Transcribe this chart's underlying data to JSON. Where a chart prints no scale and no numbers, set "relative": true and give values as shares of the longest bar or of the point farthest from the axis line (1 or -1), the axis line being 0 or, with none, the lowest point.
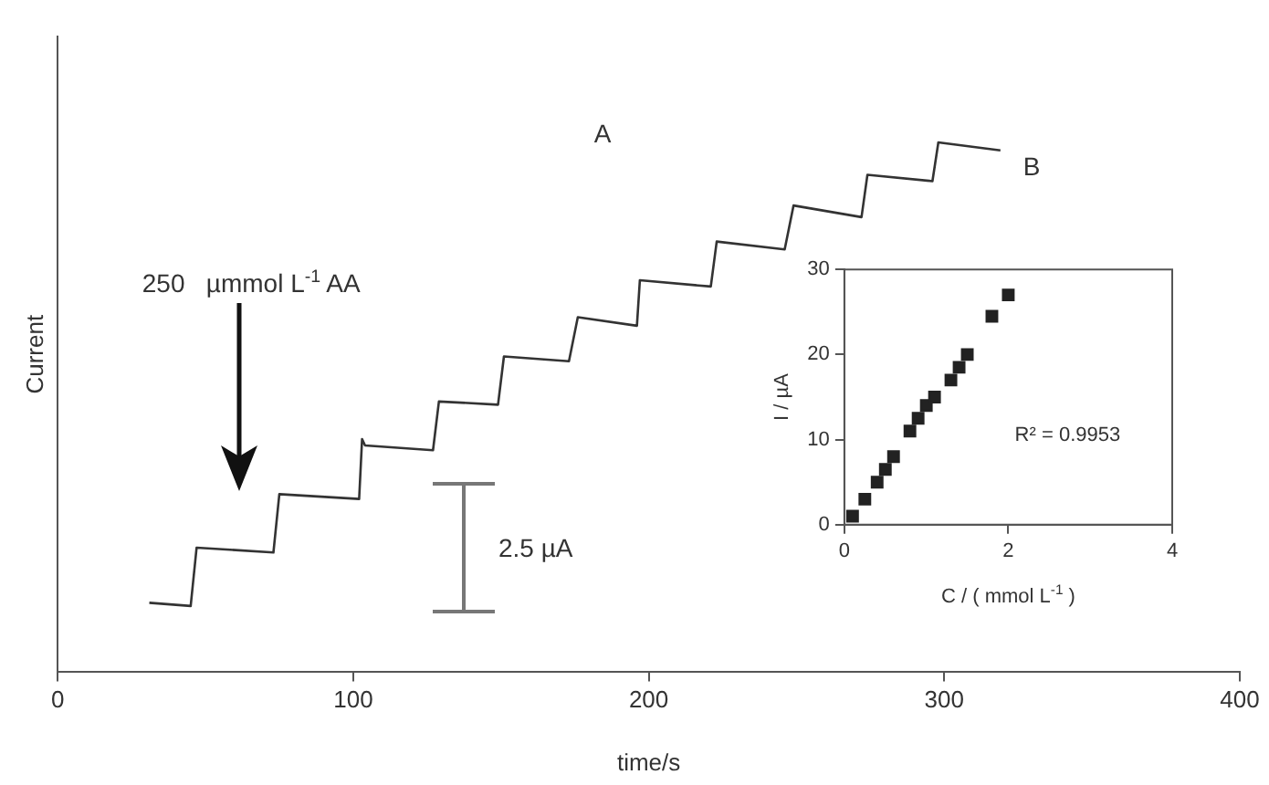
{
  "chart_data": [
    {
      "type": "line",
      "relative": true,
      "xlabel": "time/s",
      "ylabel": "Current",
      "xlim": [
        0,
        400
      ],
      "xticks": [
        0,
        100,
        200,
        300,
        400
      ],
      "grid": false,
      "legend": false,
      "marker": "none",
      "line_style": "solid",
      "tick_labels": "x",
      "annotations": [
        "250   µmmol L$^{-1}$ AA",
        "A",
        "B",
        "2.5 µA"
      ],
      "series": [
        {
          "color": "#333333",
          "x": [
            31,
            45,
            47,
            73,
            75,
            102,
            103,
            104,
            127,
            129,
            149,
            151,
            173,
            176,
            196,
            197,
            221,
            223,
            246,
            249,
            272,
            274,
            296,
            298,
            319
          ],
          "values": [
            0.131,
            0.125,
            0.235,
            0.226,
            0.336,
            0.327,
            0.44,
            0.428,
            0.419,
            0.511,
            0.505,
            0.596,
            0.587,
            0.67,
            0.654,
            0.74,
            0.728,
            0.813,
            0.798,
            0.881,
            0.859,
            0.939,
            0.927,
            1.0,
            0.985
          ]
        }
      ]
    },
    {
      "type": "scatter",
      "xlabel": "C / ( mmol L$^{-1}$ )",
      "ylabel": "I / µA",
      "xlim": [
        0,
        4
      ],
      "xticks": [
        0,
        2,
        4
      ],
      "ylim": [
        0,
        30
      ],
      "yticks": [
        0,
        10,
        20,
        30
      ],
      "grid": false,
      "legend": false,
      "marker": "square",
      "annotations": [
        "R² = 0.9953"
      ],
      "series": [
        {
          "color": "#222222",
          "x": [
            0.1,
            0.25,
            0.4,
            0.5,
            0.6,
            0.8,
            0.9,
            1.0,
            1.1,
            1.3,
            1.4,
            1.5,
            1.8,
            2.0
          ],
          "values": [
            1,
            3,
            5,
            6.5,
            8,
            11,
            12.5,
            14,
            15,
            17,
            18.5,
            20,
            24.5,
            27
          ]
        }
      ]
    }
  ]
}
